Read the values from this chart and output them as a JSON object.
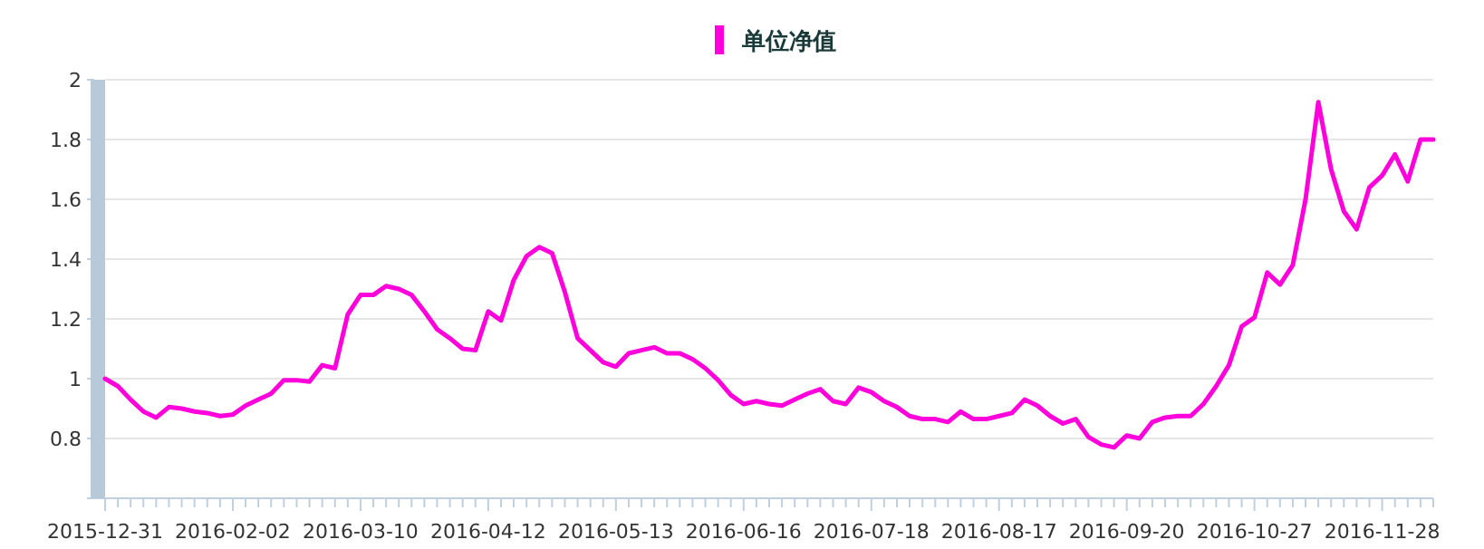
{
  "chart_data": {
    "type": "line",
    "categories": [
      "2015-12-31",
      null,
      null,
      null,
      null,
      null,
      null,
      null,
      null,
      null,
      "2016-02-02",
      null,
      null,
      null,
      null,
      null,
      null,
      null,
      null,
      null,
      "2016-03-10",
      null,
      null,
      null,
      null,
      null,
      null,
      null,
      null,
      null,
      "2016-04-12",
      null,
      null,
      null,
      null,
      null,
      null,
      null,
      null,
      null,
      "2016-05-13",
      null,
      null,
      null,
      null,
      null,
      null,
      null,
      null,
      null,
      "2016-06-16",
      null,
      null,
      null,
      null,
      null,
      null,
      null,
      null,
      null,
      "2016-07-18",
      null,
      null,
      null,
      null,
      null,
      null,
      null,
      null,
      null,
      "2016-08-17",
      null,
      null,
      null,
      null,
      null,
      null,
      null,
      null,
      null,
      "2016-09-20",
      null,
      null,
      null,
      null,
      null,
      null,
      null,
      null,
      null,
      "2016-10-27",
      null,
      null,
      null,
      null,
      null,
      null,
      null,
      null,
      null,
      "2016-11-28",
      null,
      null,
      null,
      null
    ],
    "series": [
      {
        "name": "单位净值",
        "color": "#ff00dd",
        "values": [
          1.0,
          0.975,
          0.93,
          0.89,
          0.87,
          0.905,
          0.9,
          0.89,
          0.885,
          0.875,
          0.88,
          0.91,
          0.93,
          0.95,
          0.995,
          0.995,
          0.99,
          1.045,
          1.035,
          1.215,
          1.28,
          1.28,
          1.31,
          1.3,
          1.28,
          1.225,
          1.165,
          1.135,
          1.1,
          1.095,
          1.225,
          1.195,
          1.33,
          1.41,
          1.44,
          1.42,
          1.29,
          1.135,
          1.095,
          1.055,
          1.04,
          1.085,
          1.095,
          1.105,
          1.085,
          1.085,
          1.065,
          1.035,
          0.995,
          0.945,
          0.915,
          0.925,
          0.915,
          0.91,
          0.93,
          0.95,
          0.965,
          0.925,
          0.915,
          0.97,
          0.955,
          0.925,
          0.905,
          0.875,
          0.865,
          0.865,
          0.855,
          0.89,
          0.865,
          0.865,
          0.875,
          0.885,
          0.93,
          0.91,
          0.875,
          0.85,
          0.865,
          0.805,
          0.78,
          0.77,
          0.81,
          0.8,
          0.855,
          0.87,
          0.875,
          0.875,
          0.915,
          0.975,
          1.045,
          1.175,
          1.205,
          1.355,
          1.315,
          1.38,
          1.6,
          1.925,
          1.7,
          1.56,
          1.5,
          1.64,
          1.68,
          1.75,
          1.66,
          1.8,
          1.8
        ]
      }
    ],
    "ylim": [
      0.6,
      2
    ],
    "yticks": [
      {
        "value": 0.6,
        "label": null
      },
      0.8,
      1,
      1.2,
      1.4,
      1.6,
      1.8,
      2
    ],
    "grid": "y",
    "legend": "top",
    "marker": "none"
  }
}
